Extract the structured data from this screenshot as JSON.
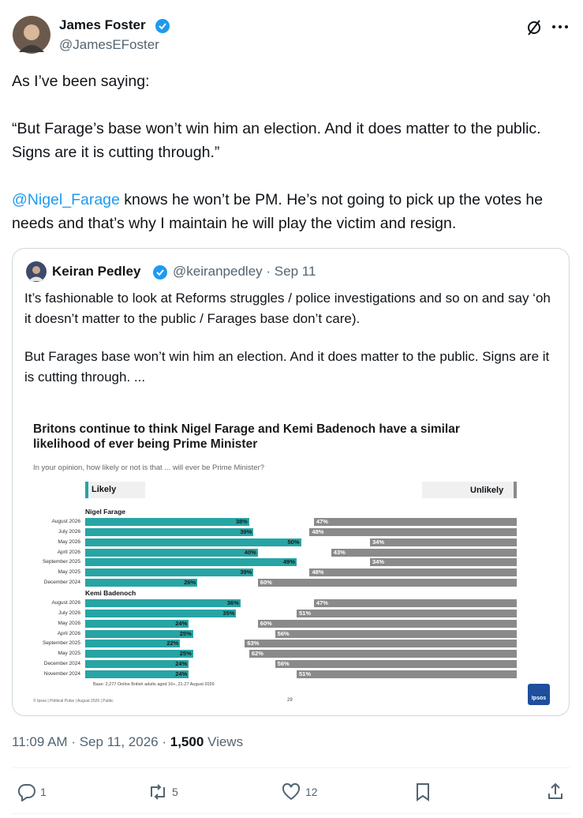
{
  "author": {
    "name": "James Foster",
    "handle": "@JamesEFoster"
  },
  "text": {
    "p1": "As I’ve been saying:",
    "p2": "“But Farage’s base won’t win him an election. And it does matter to the public. Signs are it is cutting through.”",
    "mention": "@Nigel_Farage",
    "p3": " knows he won’t be PM. He’s not going to pick up the votes he needs and that’s why I maintain he will play the victim and resign."
  },
  "quote": {
    "name": "Keiran Pedley",
    "handle": "@keiranpedley",
    "separator": "·",
    "date": "Sep 11",
    "p1": "It’s fashionable to look at Reforms struggles / police investigations and so on and say ‘oh it doesn’t matter to the public / Farages base don’t care).",
    "p2": "But Farages base won’t win him an election. And it does matter to the public. Signs are it is cutting through. ..."
  },
  "chart_data": {
    "type": "bar",
    "orientation": "horizontal",
    "title": "Britons continue to think Nigel Farage and Kemi Badenoch have a similar likelihood of ever being Prime Minister",
    "subtitle": "In your opinion, how likely or not is that ... will ever be Prime Minister?",
    "xlim": [
      0,
      100
    ],
    "groups": [
      {
        "name": "Nigel Farage",
        "categories": [
          "August 2026",
          "July 2026",
          "May 2026",
          "April 2026",
          "September 2025",
          "May 2025",
          "December 2024"
        ]
      },
      {
        "name": "Kemi Badenoch",
        "categories": [
          "August 2026",
          "July 2026",
          "May 2026",
          "April 2026",
          "September 2025",
          "May 2025",
          "December 2024",
          "November 2024"
        ]
      }
    ],
    "series": [
      {
        "name": "Likely",
        "color": "#27a4a4",
        "side": "left",
        "values": [
          38,
          39,
          50,
          40,
          49,
          39,
          26,
          36,
          35,
          24,
          25,
          22,
          25,
          24,
          24
        ],
        "value_labels": [
          "38%",
          "39%",
          "50%",
          "40%",
          "49%",
          "39%",
          "26%",
          "36%",
          "35%",
          "24%",
          "25%",
          "22%",
          "25%",
          "24%",
          "24%"
        ]
      },
      {
        "name": "Unlikely",
        "color": "#8a8a8a",
        "side": "right",
        "values": [
          47,
          48,
          34,
          43,
          34,
          48,
          60,
          47,
          51,
          60,
          56,
          63,
          62,
          56,
          51
        ],
        "value_labels": [
          "47%",
          "48%",
          "34%",
          "43%",
          "34%",
          "48%",
          "60%",
          "47%",
          "51%",
          "60%",
          "56%",
          "63%",
          "62%",
          "56%",
          "51%"
        ]
      }
    ],
    "base": "Base: 2,277 Online British adults aged 16+, 21-27 August 2026",
    "footer": "© Ipsos | Political Pulse | August 2026 | Public",
    "page": "29",
    "logo": "Ipsos"
  },
  "meta": {
    "time": "11:09 AM",
    "separator": "·",
    "date": "Sep 11, 2026",
    "views": "1,500",
    "views_label": "Views"
  },
  "actions": {
    "replies": 1,
    "reposts": 5,
    "likes": 12
  }
}
